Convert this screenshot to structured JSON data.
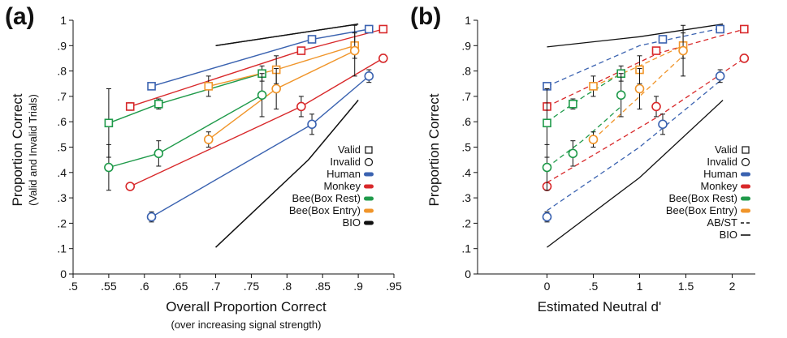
{
  "chart_data": [
    {
      "type": "scatter",
      "panel_label": "(a)",
      "xlabel": "Overall Proportion Correct",
      "xlabel_sub": "(over increasing signal strength)",
      "ylabel": "Proportion Correct",
      "ylabel_sub": "(Valid and Invalid Trials)",
      "xlim": [
        0.5,
        0.95
      ],
      "ylim": [
        0,
        1
      ],
      "x_ticks": [
        ".5",
        ".55",
        ".6",
        ".65",
        ".7",
        ".75",
        ".8",
        ".85",
        ".9",
        ".95"
      ],
      "y_ticks": [
        "0",
        ".1",
        ".2",
        ".3",
        ".4",
        ".5",
        ".6",
        ".7",
        ".8",
        ".9",
        "1"
      ],
      "grid": false,
      "legend_position": "bottom-right",
      "legend": [
        {
          "label": "Valid",
          "marker": "square"
        },
        {
          "label": "Invalid",
          "marker": "circle"
        },
        {
          "label": "Human",
          "color": "#3a62b0"
        },
        {
          "label": "Monkey",
          "color": "#d8282a"
        },
        {
          "label": "Bee(Box Rest)",
          "color": "#1f9a4a"
        },
        {
          "label": "Bee(Box Entry)",
          "color": "#f0952a"
        },
        {
          "label": "BIO",
          "color": "#111111"
        }
      ],
      "series": [
        {
          "name": "Human",
          "cue": "Valid",
          "color": "#3a62b0",
          "x": [
            0.61,
            0.835,
            0.915
          ],
          "y": [
            0.74,
            0.925,
            0.965
          ],
          "err": [
            0,
            0,
            0
          ]
        },
        {
          "name": "Human",
          "cue": "Invalid",
          "color": "#3a62b0",
          "x": [
            0.61,
            0.835,
            0.915
          ],
          "y": [
            0.225,
            0.59,
            0.78
          ],
          "err": [
            0.02,
            0.04,
            0.025
          ]
        },
        {
          "name": "Monkey",
          "cue": "Valid",
          "color": "#d8282a",
          "x": [
            0.58,
            0.82,
            0.935
          ],
          "y": [
            0.66,
            0.88,
            0.965
          ],
          "err": [
            0.015,
            0,
            0
          ]
        },
        {
          "name": "Monkey",
          "cue": "Invalid",
          "color": "#d8282a",
          "x": [
            0.58,
            0.82,
            0.935
          ],
          "y": [
            0.345,
            0.66,
            0.85
          ],
          "err": [
            0,
            0.04,
            0.015
          ]
        },
        {
          "name": "Bee(Box Rest)",
          "cue": "Valid",
          "color": "#1f9a4a",
          "x": [
            0.55,
            0.62,
            0.765
          ],
          "y": [
            0.595,
            0.67,
            0.79
          ],
          "err": [
            0.135,
            0.02,
            0.03
          ]
        },
        {
          "name": "Bee(Box Rest)",
          "cue": "Invalid",
          "color": "#1f9a4a",
          "x": [
            0.55,
            0.62,
            0.765
          ],
          "y": [
            0.42,
            0.475,
            0.705
          ],
          "err": [
            0.09,
            0.05,
            0.085
          ]
        },
        {
          "name": "Bee(Box Entry)",
          "cue": "Valid",
          "color": "#f0952a",
          "x": [
            0.69,
            0.785,
            0.895
          ],
          "y": [
            0.74,
            0.805,
            0.9
          ],
          "err": [
            0.04,
            0.055,
            0.05
          ]
        },
        {
          "name": "Bee(Box Entry)",
          "cue": "Invalid",
          "color": "#f0952a",
          "x": [
            0.69,
            0.785,
            0.895
          ],
          "y": [
            0.53,
            0.73,
            0.88
          ],
          "err": [
            0.03,
            0.08,
            0.1
          ]
        },
        {
          "name": "BIO",
          "cue": "Valid",
          "color": "#111111",
          "x": [
            0.7,
            0.9
          ],
          "y": [
            0.9,
            0.985
          ],
          "err": []
        },
        {
          "name": "BIO",
          "cue": "Invalid",
          "color": "#111111",
          "x": [
            0.7,
            0.83,
            0.9
          ],
          "y": [
            0.105,
            0.45,
            0.685
          ],
          "err": []
        }
      ]
    },
    {
      "type": "scatter",
      "panel_label": "(b)",
      "xlabel": "Estimated Neutral d'",
      "ylabel": "Proportion Correct",
      "xlim": [
        -0.75,
        2.25
      ],
      "ylim": [
        0,
        1
      ],
      "x_ticks": [
        "0",
        ".5",
        "1",
        "1.5",
        "2"
      ],
      "y_ticks": [
        "0",
        ".1",
        ".2",
        ".3",
        ".4",
        ".5",
        ".6",
        ".7",
        ".8",
        ".9",
        "1"
      ],
      "grid": false,
      "legend_position": "bottom-right",
      "legend": [
        {
          "label": "Valid",
          "marker": "square"
        },
        {
          "label": "Invalid",
          "marker": "circle"
        },
        {
          "label": "Human",
          "color": "#3a62b0"
        },
        {
          "label": "Monkey",
          "color": "#d8282a"
        },
        {
          "label": "Bee(Box Rest)",
          "color": "#1f9a4a"
        },
        {
          "label": "Bee(Box Entry)",
          "color": "#f0952a"
        },
        {
          "label": "AB/ST",
          "line": "dashed"
        },
        {
          "label": "BIO",
          "line": "solid"
        }
      ],
      "series": [
        {
          "name": "Human",
          "cue": "Valid",
          "color": "#3a62b0",
          "x": [
            0,
            1.25,
            1.87
          ],
          "y": [
            0.74,
            0.925,
            0.965
          ],
          "err": [
            0,
            0,
            0
          ]
        },
        {
          "name": "Human",
          "cue": "Invalid",
          "color": "#3a62b0",
          "x": [
            0,
            1.25,
            1.87
          ],
          "y": [
            0.225,
            0.59,
            0.78
          ],
          "err": [
            0.02,
            0.04,
            0.025
          ]
        },
        {
          "name": "Monkey",
          "cue": "Valid",
          "color": "#d8282a",
          "x": [
            0,
            1.18,
            2.13
          ],
          "y": [
            0.66,
            0.88,
            0.965
          ],
          "err": [
            0.015,
            0,
            0
          ]
        },
        {
          "name": "Monkey",
          "cue": "Invalid",
          "color": "#d8282a",
          "x": [
            0,
            1.18,
            2.13
          ],
          "y": [
            0.345,
            0.66,
            0.85
          ],
          "err": [
            0,
            0.04,
            0.015
          ]
        },
        {
          "name": "Bee(Box Rest)",
          "cue": "Valid",
          "color": "#1f9a4a",
          "x": [
            0,
            0.28,
            0.8
          ],
          "y": [
            0.595,
            0.67,
            0.79
          ],
          "err": [
            0.135,
            0.02,
            0.03
          ]
        },
        {
          "name": "Bee(Box Rest)",
          "cue": "Invalid",
          "color": "#1f9a4a",
          "x": [
            0,
            0.28,
            0.8
          ],
          "y": [
            0.42,
            0.475,
            0.705
          ],
          "err": [
            0.09,
            0.05,
            0.085
          ]
        },
        {
          "name": "Bee(Box Entry)",
          "cue": "Valid",
          "color": "#f0952a",
          "x": [
            0.5,
            1.0,
            1.47
          ],
          "y": [
            0.74,
            0.805,
            0.9
          ],
          "err": [
            0.04,
            0.055,
            0.05
          ]
        },
        {
          "name": "Bee(Box Entry)",
          "cue": "Invalid",
          "color": "#f0952a",
          "x": [
            0.5,
            1.0,
            1.47
          ],
          "y": [
            0.53,
            0.73,
            0.88
          ],
          "err": [
            0.03,
            0.08,
            0.1
          ]
        }
      ],
      "model_curves": [
        {
          "name": "AB/ST",
          "color": "#3a62b0",
          "style": "dashed",
          "x": [
            0,
            1.0,
            1.9
          ],
          "y": [
            0.74,
            0.9,
            0.97
          ]
        },
        {
          "name": "AB/ST",
          "color": "#3a62b0",
          "style": "dashed",
          "x": [
            0,
            1.0,
            1.9
          ],
          "y": [
            0.25,
            0.5,
            0.77
          ]
        },
        {
          "name": "AB/ST",
          "color": "#d8282a",
          "style": "dashed",
          "x": [
            0,
            1.2,
            2.13
          ],
          "y": [
            0.66,
            0.87,
            0.965
          ]
        },
        {
          "name": "AB/ST",
          "color": "#d8282a",
          "style": "dashed",
          "x": [
            0,
            1.2,
            2.13
          ],
          "y": [
            0.36,
            0.62,
            0.85
          ]
        },
        {
          "name": "AB/ST",
          "color": "#1f9a4a",
          "style": "dashed",
          "x": [
            0,
            0.4,
            0.8
          ],
          "y": [
            0.6,
            0.7,
            0.79
          ]
        },
        {
          "name": "AB/ST",
          "color": "#1f9a4a",
          "style": "dashed",
          "x": [
            0,
            0.4,
            0.8
          ],
          "y": [
            0.42,
            0.53,
            0.66
          ]
        },
        {
          "name": "AB/ST",
          "color": "#f0952a",
          "style": "dashed",
          "x": [
            0.5,
            1.0,
            1.47
          ],
          "y": [
            0.74,
            0.82,
            0.9
          ]
        },
        {
          "name": "AB/ST",
          "color": "#f0952a",
          "style": "dashed",
          "x": [
            0.5,
            1.0,
            1.47
          ],
          "y": [
            0.53,
            0.7,
            0.86
          ]
        },
        {
          "name": "BIO",
          "color": "#111111",
          "style": "solid",
          "x": [
            0,
            1.0,
            1.9
          ],
          "y": [
            0.895,
            0.935,
            0.985
          ]
        },
        {
          "name": "BIO",
          "color": "#111111",
          "style": "solid",
          "x": [
            0,
            1.0,
            1.9
          ],
          "y": [
            0.105,
            0.38,
            0.685
          ]
        }
      ]
    }
  ]
}
